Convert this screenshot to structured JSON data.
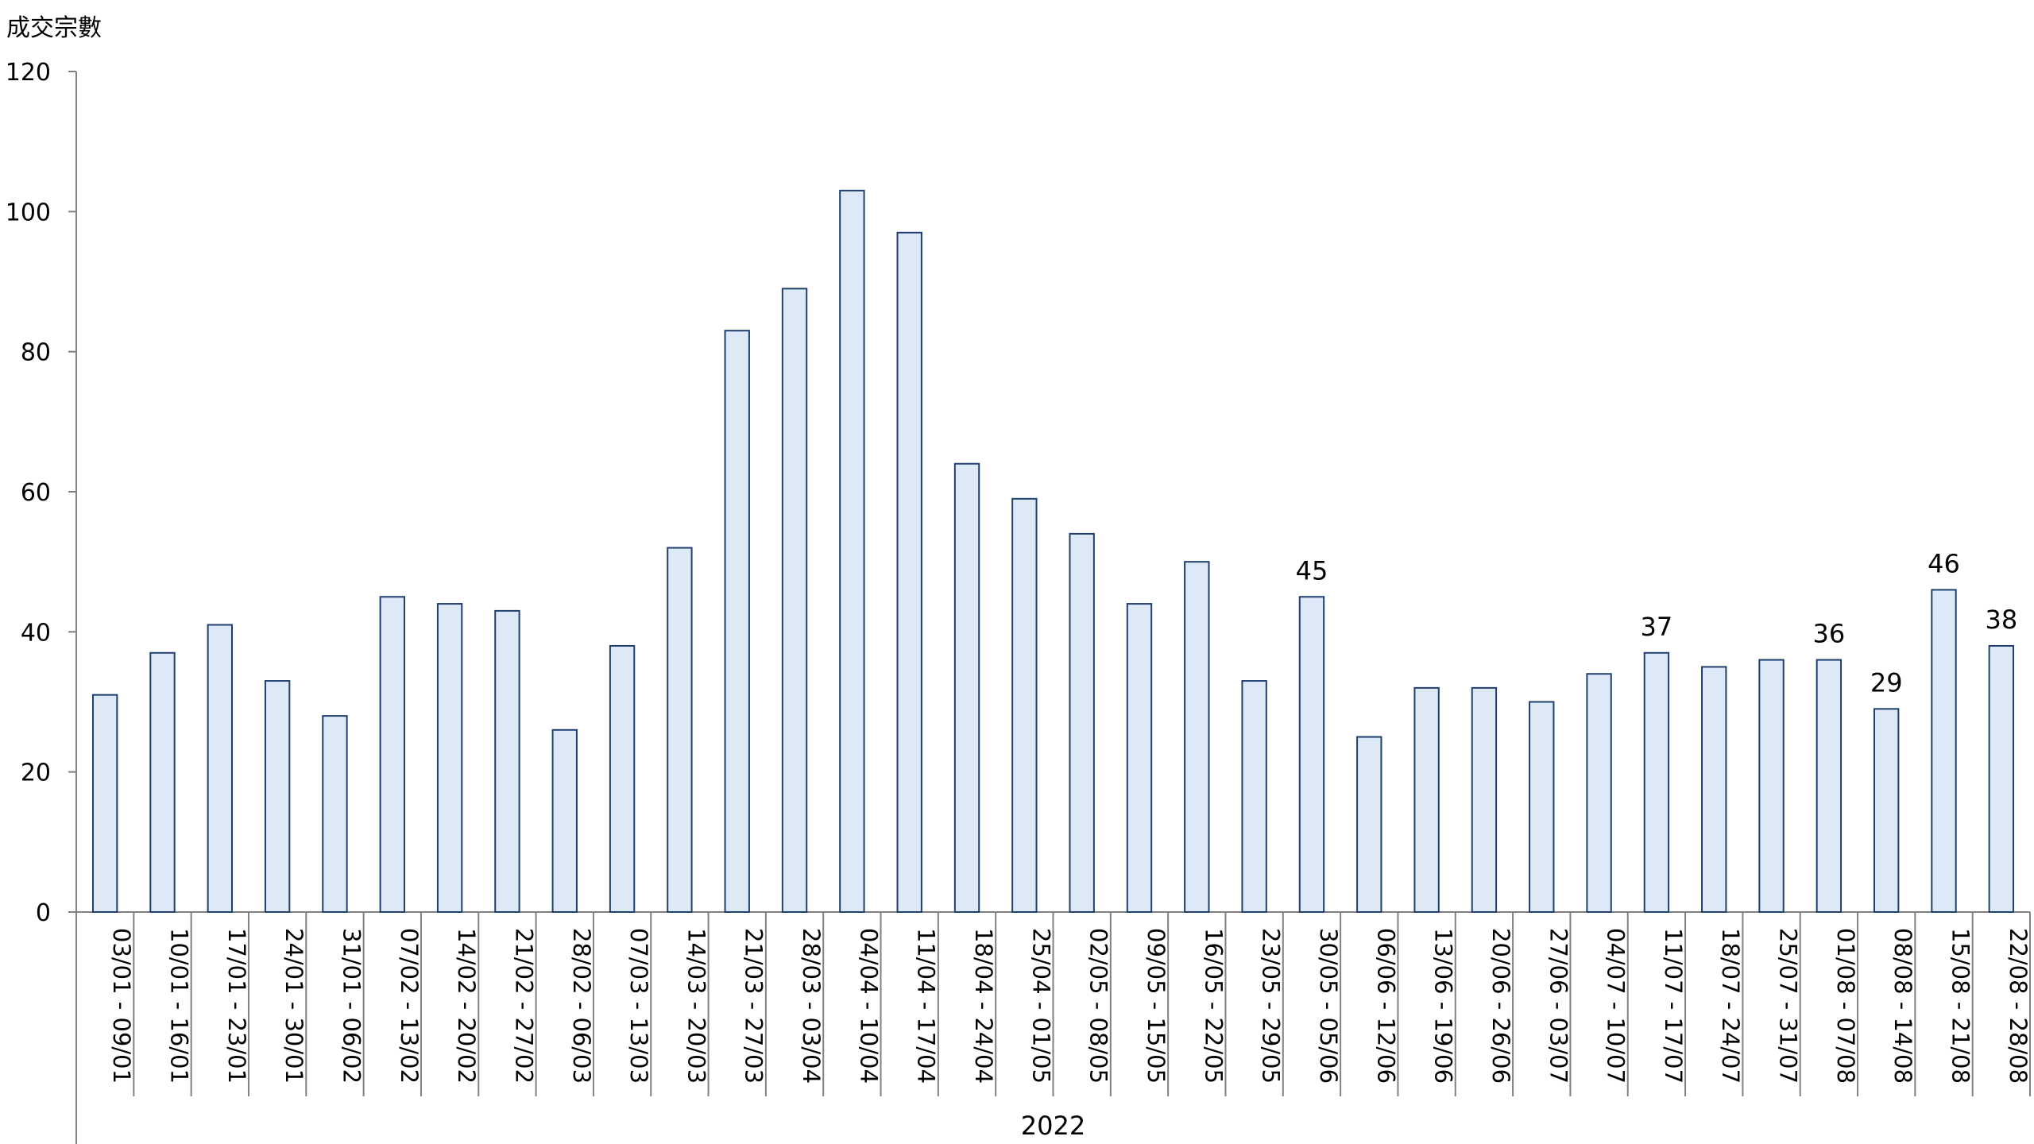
{
  "chart_data": {
    "type": "bar",
    "ylabel": "成交宗數",
    "xlabel": "",
    "group_label": "2022",
    "ylim": [
      0,
      120
    ],
    "yticks": [
      0,
      20,
      40,
      60,
      80,
      100,
      120
    ],
    "bar_fill": "#dde9f6",
    "bar_stroke": "#1f3f6e",
    "axis_color": "#808080",
    "grid": false,
    "categories": [
      "03/01 - 09/01",
      "10/01 - 16/01",
      "17/01 - 23/01",
      "24/01 - 30/01",
      "31/01 - 06/02",
      "07/02 - 13/02",
      "14/02 - 20/02",
      "21/02 - 27/02",
      "28/02 - 06/03",
      "07/03 - 13/03",
      "14/03 - 20/03",
      "21/03 - 27/03",
      "28/03 - 03/04",
      "04/04 - 10/04",
      "11/04 - 17/04",
      "18/04 - 24/04",
      "25/04 - 01/05",
      "02/05 - 08/05",
      "09/05 - 15/05",
      "16/05 - 22/05",
      "23/05 - 29/05",
      "30/05 - 05/06",
      "06/06 - 12/06",
      "13/06 - 19/06",
      "20/06 - 26/06",
      "27/06 - 03/07",
      "04/07 - 10/07",
      "11/07 - 17/07",
      "18/07 - 24/07",
      "25/07 - 31/07",
      "01/08 - 07/08",
      "08/08 - 14/08",
      "15/08 - 21/08",
      "22/08 - 28/08"
    ],
    "values": [
      31,
      37,
      41,
      33,
      28,
      45,
      44,
      43,
      26,
      38,
      52,
      83,
      89,
      103,
      97,
      64,
      59,
      54,
      44,
      50,
      33,
      45,
      25,
      32,
      32,
      30,
      34,
      37,
      35,
      36,
      36,
      29,
      46,
      38
    ],
    "data_labels": [
      {
        "index": 21,
        "text": "45"
      },
      {
        "index": 27,
        "text": "37"
      },
      {
        "index": 30,
        "text": "36"
      },
      {
        "index": 31,
        "text": "29"
      },
      {
        "index": 32,
        "text": "46"
      },
      {
        "index": 33,
        "text": "38"
      }
    ]
  }
}
